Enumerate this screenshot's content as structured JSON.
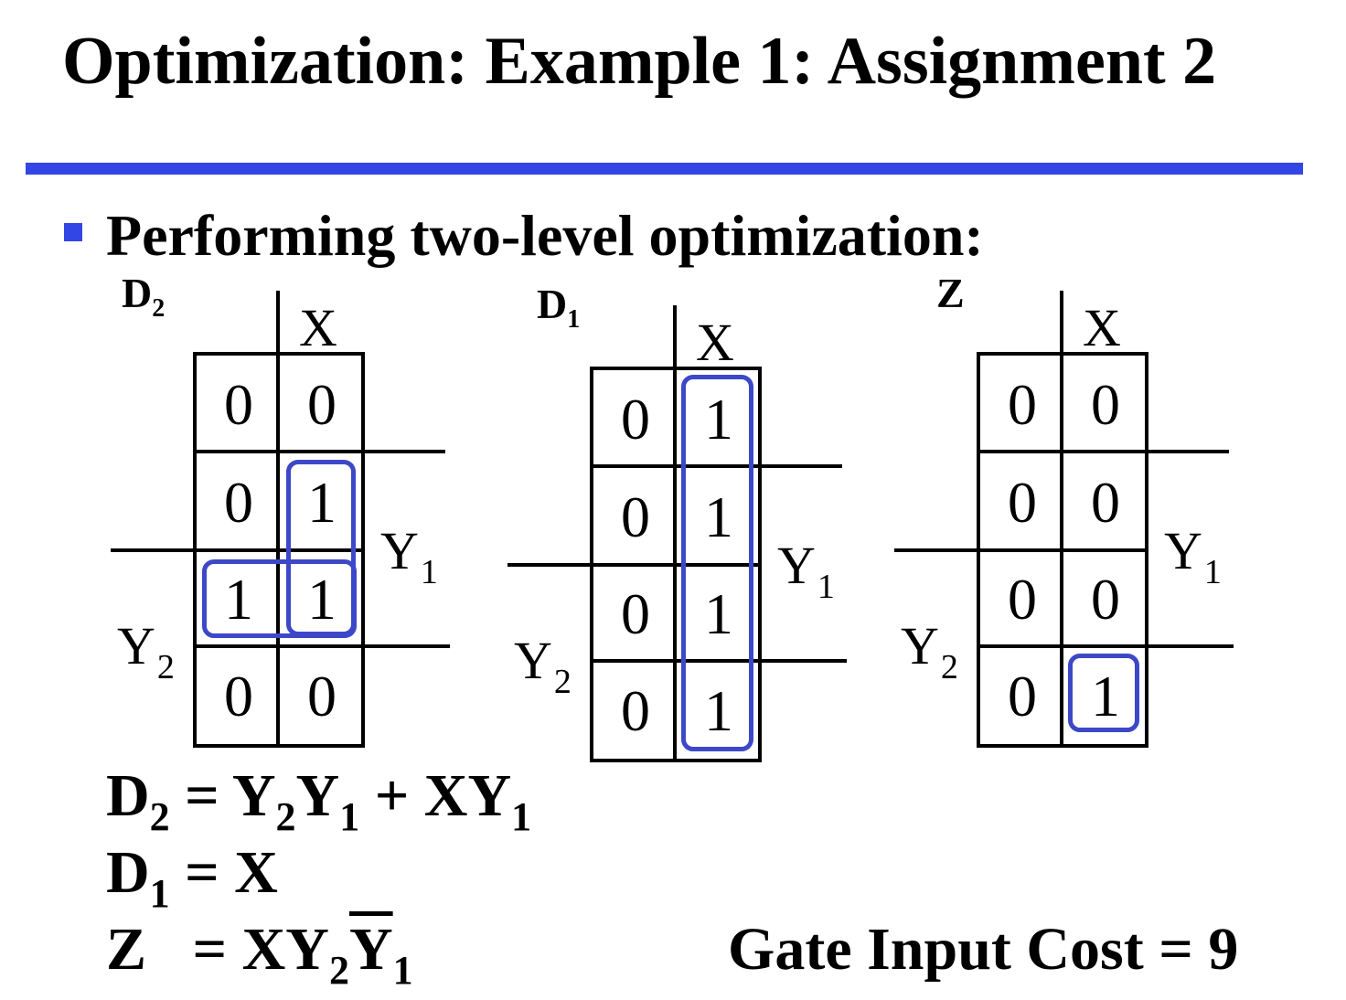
{
  "title": "Optimization: Example 1: Assignment 2",
  "bullet": "Performing two-level optimization:",
  "maps": [
    {
      "name": "D",
      "sub": "2",
      "x_label": "X",
      "y1_label": "Y",
      "y1_sub": "1",
      "y2_label": "Y",
      "y2_sub": "2",
      "cells": [
        [
          "0",
          "0"
        ],
        [
          "0",
          "1"
        ],
        [
          "1",
          "1"
        ],
        [
          "0",
          "0"
        ]
      ]
    },
    {
      "name": "D",
      "sub": "1",
      "x_label": "X",
      "y1_label": "Y",
      "y1_sub": "1",
      "y2_label": "Y",
      "y2_sub": "2",
      "cells": [
        [
          "0",
          "1"
        ],
        [
          "0",
          "1"
        ],
        [
          "0",
          "1"
        ],
        [
          "0",
          "1"
        ]
      ]
    },
    {
      "name": "Z",
      "sub": "",
      "x_label": "X",
      "y1_label": "Y",
      "y1_sub": "1",
      "y2_label": "Y",
      "y2_sub": "2",
      "cells": [
        [
          "0",
          "0"
        ],
        [
          "0",
          "0"
        ],
        [
          "0",
          "0"
        ],
        [
          "0",
          "1"
        ]
      ]
    }
  ],
  "equations": {
    "d2": {
      "lhs": "D",
      "lhs_sub": "2",
      "eq": " = ",
      "t1": "Y",
      "t1_sub": "2",
      "t2": "Y",
      "t2_sub": "1",
      "plus": " + ",
      "t3": "XY",
      "t3_sub": "1"
    },
    "d1": {
      "lhs": "D",
      "lhs_sub": "1",
      "eq": " = ",
      "rhs": "X"
    },
    "z": {
      "lhs": "Z",
      "eq": " = ",
      "t1": "XY",
      "t1_sub": "2",
      "t2": "Y",
      "t2_sub": "1"
    }
  },
  "cost": "Gate Input Cost = 9",
  "colors": {
    "accent": "#3246e6",
    "group": "#3d48c8"
  }
}
